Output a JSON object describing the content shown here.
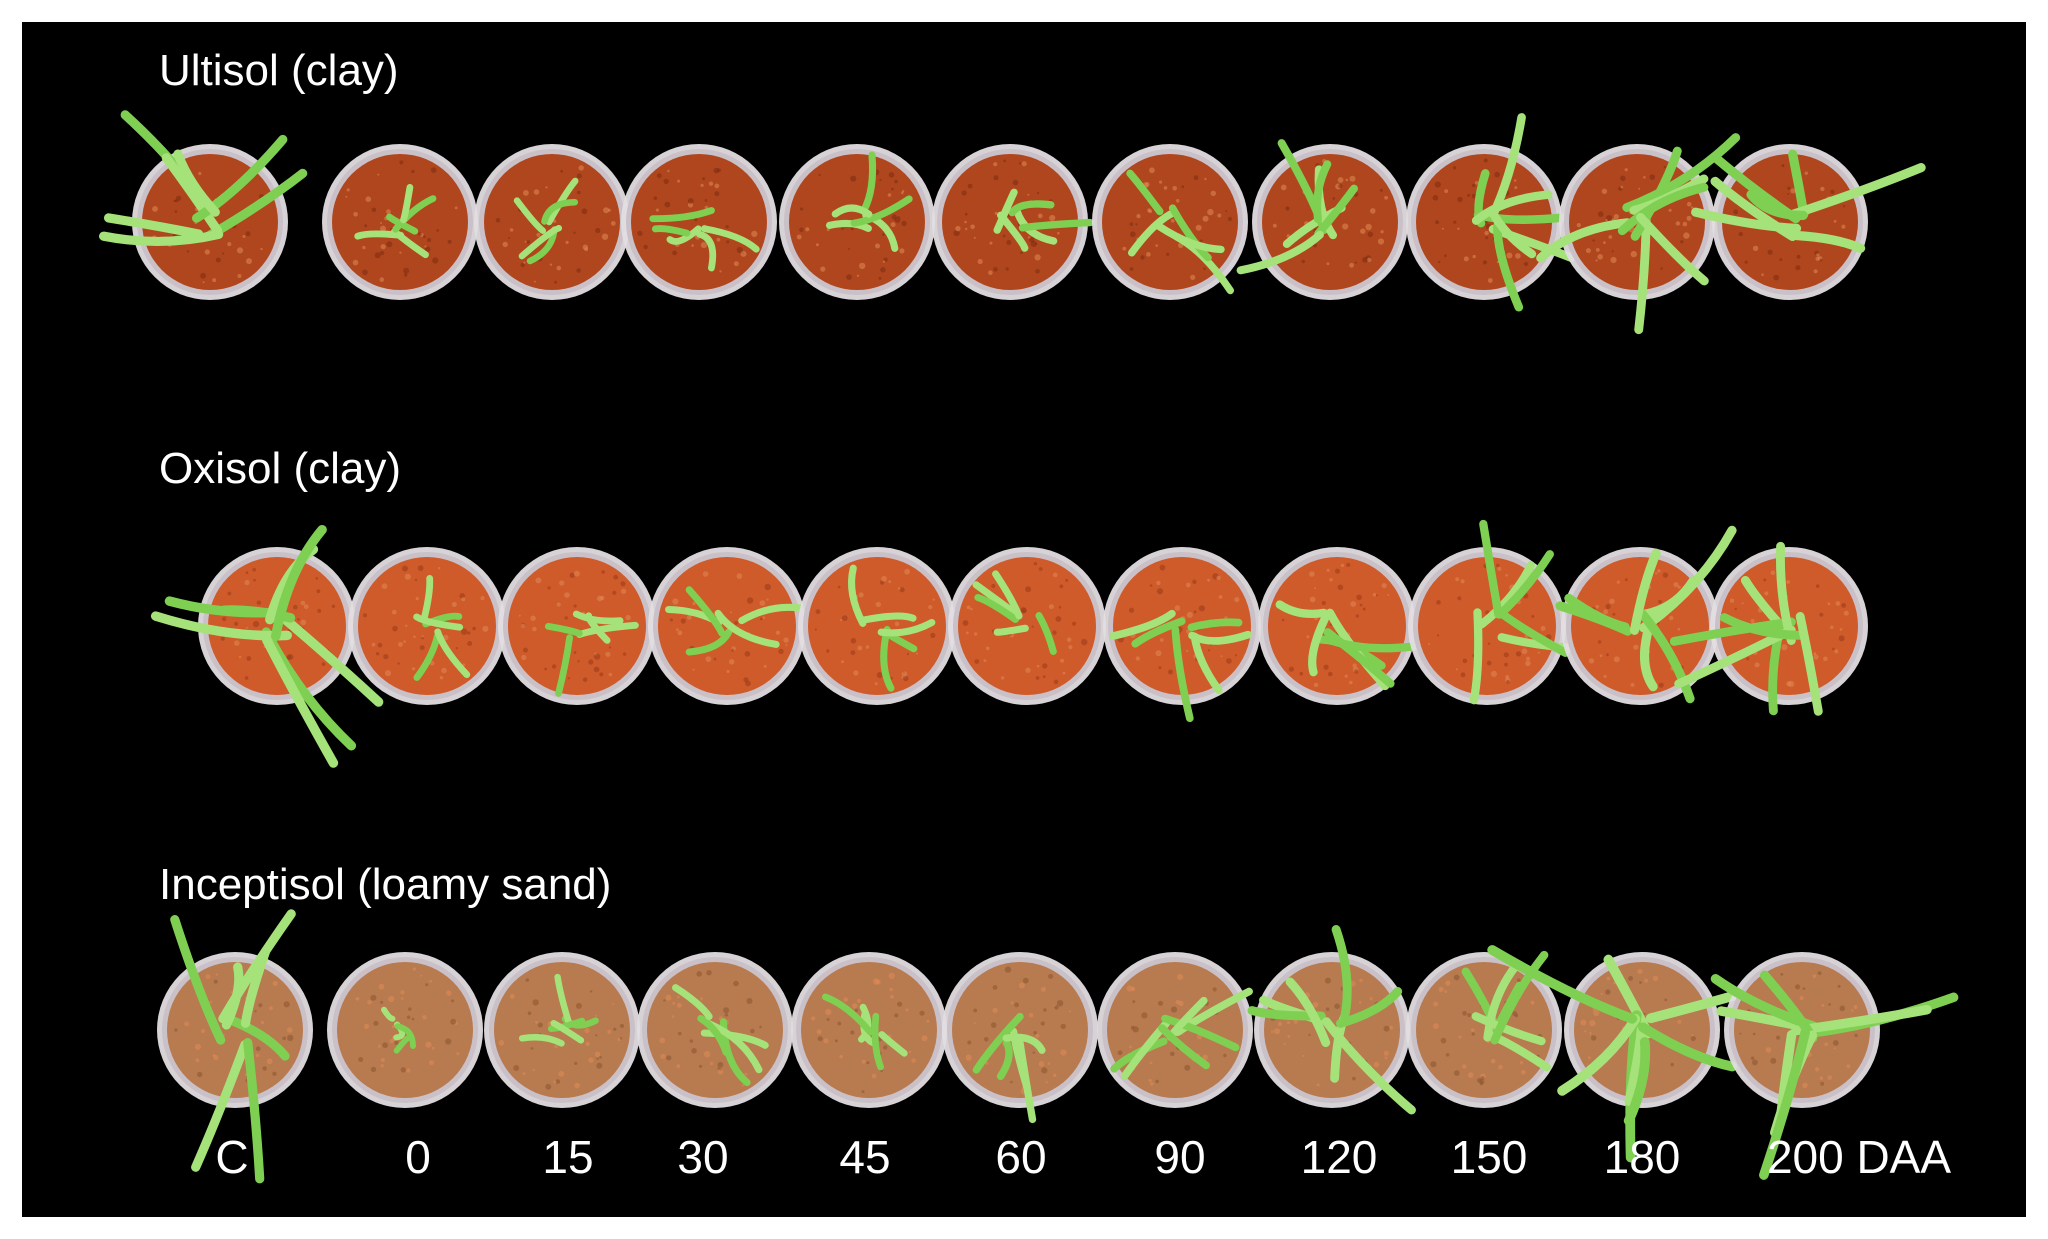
{
  "rows": [
    {
      "label": "Ultisol (clay)",
      "soil_color": "#b0461d",
      "soil_dark": "#7e2c12",
      "leaf_scale": [
        1.4,
        0.6,
        0.5,
        0.6,
        0.7,
        0.8,
        0.8,
        1.0,
        1.2,
        1.3,
        1.4
      ]
    },
    {
      "label": "Oxisol (clay)",
      "soil_color": "#cf5a2a",
      "soil_dark": "#9a3b17",
      "leaf_scale": [
        1.5,
        0.6,
        0.6,
        0.7,
        0.7,
        0.7,
        0.9,
        1.1,
        1.1,
        1.4,
        1.3
      ]
    },
    {
      "label": "Inceptisol (loamy sand)",
      "soil_color": "#b87a4f",
      "soil_dark": "#8a5532",
      "leaf_scale": [
        1.4,
        0.3,
        0.5,
        0.7,
        0.6,
        0.8,
        0.9,
        1.3,
        1.1,
        1.6,
        1.5
      ]
    }
  ],
  "x_labels": [
    "C",
    "0",
    "15",
    "30",
    "45",
    "60",
    "90",
    "120",
    "150",
    "180",
    "200 DAA"
  ],
  "colors": {
    "background": "#000000",
    "leaf": "#7fcf52",
    "leaf_light": "#a5e27a",
    "cup_rim": "#e3dde2"
  }
}
